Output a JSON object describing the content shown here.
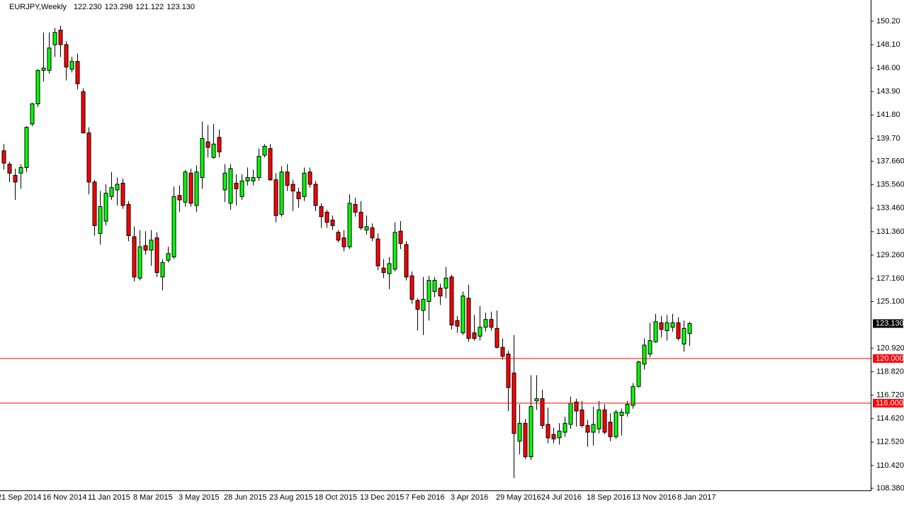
{
  "chart_data": {
    "type": "candlestick",
    "title": "EURJPY,Weekly",
    "header_values": [
      "122.230",
      "123.298",
      "121.122",
      "123.130"
    ],
    "categories": [
      "21 Sep 2014",
      null,
      null,
      null,
      null,
      null,
      null,
      null,
      "16 Nov 2014",
      null,
      null,
      null,
      null,
      null,
      null,
      null,
      "11 Jan 2015",
      null,
      null,
      null,
      null,
      null,
      null,
      null,
      "8 Mar 2015",
      null,
      null,
      null,
      null,
      null,
      null,
      null,
      "3 May 2015",
      null,
      null,
      null,
      null,
      null,
      null,
      null,
      "28 Jun 2015",
      null,
      null,
      null,
      null,
      null,
      null,
      null,
      "23 Aug 2015",
      null,
      null,
      null,
      null,
      null,
      null,
      null,
      "18 Oct 2015",
      null,
      null,
      null,
      null,
      null,
      null,
      null,
      "13 Dec 2015",
      null,
      null,
      null,
      null,
      null,
      null,
      null,
      "7 Feb 2016",
      null,
      null,
      null,
      null,
      null,
      null,
      null,
      "3 Apr 2016",
      null,
      null,
      null,
      null,
      null,
      null,
      null,
      "29 May 2016",
      null,
      null,
      null,
      null,
      null,
      null,
      null,
      "24 Jul 2016",
      null,
      null,
      null,
      null,
      null,
      null,
      null,
      "18 Sep 2016",
      null,
      null,
      null,
      null,
      null,
      null,
      null,
      "13 Nov 2016",
      null,
      null,
      null,
      null,
      null,
      null,
      null,
      "8 Jan 2017",
      null,
      null
    ],
    "open": [
      null,
      138.6,
      137.4,
      136.4,
      136.6,
      137.1,
      141.0,
      142.8,
      145.8,
      145.8,
      148.1,
      149.4,
      148.1,
      145.9,
      146.6,
      143.9,
      140.2,
      135.8,
      131.2,
      132.3,
      134.5,
      135.1,
      135.7,
      133.8,
      130.9,
      127.2,
      130.1,
      129.7,
      130.8,
      127.3,
      128.8,
      129.1,
      134.6,
      134.0,
      136.6,
      133.7,
      136.2,
      139.4,
      138.0,
      139.8,
      135.1,
      133.9,
      135.7,
      134.5,
      135.9,
      135.9,
      136.2,
      138.2,
      138.8,
      136.0,
      132.9,
      136.7,
      135.6,
      134.9,
      134.5,
      136.7,
      135.6,
      133.6,
      133.1,
      132.4,
      131.3,
      130.8,
      130.0,
      133.8,
      133.1,
      131.5,
      131.7,
      130.7,
      128.1,
      127.6,
      128.0,
      131.4,
      130.2,
      127.4,
      125.2,
      124.3,
      125.1,
      126.0,
      126.3,
      126.3,
      127.3,
      123.4,
      122.3,
      125.4,
      122.3,
      122.0,
      122.8,
      123.5,
      122.7,
      121.0,
      120.4,
      118.7,
      112.6,
      114.2,
      111.2,
      116.2,
      116.4,
      114.1,
      113.2,
      112.9,
      113.4,
      114.1,
      116.1,
      115.4,
      114.0,
      113.4,
      113.7,
      115.4,
      114.3,
      113.0,
      114.9,
      115.1,
      115.8,
      117.5,
      119.5,
      120.4,
      121.5,
      123.2,
      122.5,
      122.8,
      123.2,
      121.3,
      122.23
    ],
    "high": [
      null,
      139.2,
      137.6,
      137.0,
      137.4,
      140.8,
      142.9,
      145.9,
      149.2,
      149.2,
      149.6,
      149.8,
      148.4,
      147.0,
      147.3,
      144.2,
      140.7,
      136.0,
      135.0,
      135.6,
      136.7,
      136.2,
      136.1,
      134.1,
      131.8,
      131.5,
      131.4,
      131.5,
      131.3,
      128.9,
      130.0,
      135.4,
      135.5,
      136.9,
      137.0,
      137.3,
      141.2,
      140.9,
      141.0,
      140.5,
      137.4,
      137.4,
      136.5,
      136.5,
      137.1,
      136.9,
      138.8,
      139.2,
      139.2,
      136.6,
      137.2,
      137.4,
      136.0,
      135.3,
      137.1,
      137.1,
      135.9,
      133.9,
      133.3,
      132.8,
      131.5,
      131.5,
      134.7,
      134.4,
      134.1,
      132.8,
      132.1,
      131.2,
      128.9,
      129.1,
      132.2,
      132.3,
      130.5,
      127.8,
      125.4,
      127.3,
      127.4,
      127.3,
      126.7,
      128.2,
      127.5,
      123.8,
      126.0,
      126.6,
      123.9,
      124.7,
      124.1,
      124.2,
      124.3,
      121.8,
      120.7,
      122.1,
      115.9,
      114.6,
      118.5,
      118.5,
      117.2,
      115.6,
      113.8,
      114.2,
      114.8,
      116.6,
      116.4,
      116.2,
      114.5,
      115.7,
      116.2,
      115.9,
      115.1,
      115.4,
      115.5,
      116.2,
      117.8,
      119.8,
      121.8,
      123.2,
      124.0,
      123.8,
      123.9,
      124.0,
      123.7,
      123.4,
      123.298
    ],
    "low": [
      null,
      136.9,
      135.8,
      134.2,
      135.2,
      136.7,
      140.8,
      142.5,
      144.8,
      145.5,
      147.0,
      147.0,
      144.9,
      145.6,
      144.1,
      140.2,
      134.7,
      131.0,
      130.2,
      131.9,
      134.2,
      133.7,
      133.4,
      130.5,
      126.9,
      127.0,
      129.3,
      128.3,
      127.3,
      126.1,
      128.6,
      128.9,
      133.1,
      133.6,
      133.6,
      133.1,
      135.2,
      138.0,
      137.9,
      138.0,
      134.0,
      133.3,
      133.7,
      134.2,
      135.5,
      135.5,
      135.9,
      138.0,
      135.9,
      132.2,
      132.7,
      135.0,
      133.2,
      133.5,
      134.1,
      135.3,
      133.2,
      131.7,
      131.7,
      131.5,
      130.4,
      129.6,
      129.8,
      132.7,
      131.5,
      131.1,
      130.5,
      127.9,
      127.2,
      126.2,
      127.8,
      129.8,
      127.0,
      124.9,
      122.5,
      122.1,
      123.4,
      125.5,
      124.8,
      125.4,
      122.6,
      122.3,
      122.1,
      121.5,
      121.6,
      121.6,
      122.4,
      122.5,
      120.9,
      119.9,
      115.3,
      109.3,
      111.4,
      111.0,
      110.9,
      115.4,
      113.7,
      112.4,
      112.4,
      112.3,
      113.0,
      113.7,
      113.9,
      113.8,
      112.1,
      112.2,
      113.3,
      113.2,
      112.6,
      112.8,
      113.1,
      114.8,
      115.5,
      117.4,
      119.0,
      120.1,
      121.4,
      121.9,
      121.6,
      122.4,
      121.6,
      120.6,
      121.122
    ],
    "close": [
      null,
      137.5,
      136.6,
      135.8,
      137.1,
      140.7,
      142.8,
      145.8,
      146.0,
      147.8,
      149.2,
      148.1,
      146.1,
      146.6,
      144.6,
      140.2,
      135.8,
      131.9,
      133.6,
      134.8,
      135.3,
      135.6,
      133.7,
      131.0,
      127.3,
      130.0,
      129.7,
      130.6,
      127.7,
      128.6,
      129.4,
      134.5,
      134.2,
      136.7,
      133.9,
      136.7,
      139.7,
      138.9,
      139.2,
      138.5,
      136.6,
      137.0,
      135.2,
      135.9,
      136.2,
      136.2,
      138.1,
      139.0,
      136.0,
      132.8,
      136.7,
      135.5,
      135.0,
      134.3,
      136.6,
      135.6,
      133.7,
      132.7,
      132.2,
      131.9,
      130.6,
      130.0,
      133.9,
      133.1,
      131.7,
      131.8,
      130.8,
      128.3,
      127.7,
      128.5,
      131.3,
      130.3,
      127.3,
      125.3,
      124.4,
      125.3,
      127.0,
      127.0,
      125.6,
      127.2,
      123.0,
      122.9,
      125.6,
      121.8,
      121.8,
      122.8,
      123.5,
      122.8,
      121.0,
      120.2,
      117.4,
      113.3,
      114.2,
      111.2,
      115.7,
      116.4,
      114.0,
      112.9,
      112.8,
      113.5,
      114.2,
      116.0,
      115.3,
      114.0,
      113.4,
      114.1,
      115.4,
      113.4,
      113.0,
      115.2,
      115.2,
      115.9,
      117.5,
      119.7,
      121.2,
      121.6,
      123.3,
      122.6,
      123.2,
      123.2,
      121.8,
      122.7,
      123.13
    ],
    "up_color": "#00ff00",
    "down_color": "#ff0000",
    "wick_color": "#000000",
    "ylim": [
      108.19,
      152.1
    ],
    "yticks": [
      {
        "value": 150.2,
        "label": "150.20"
      },
      {
        "value": 148.1,
        "label": "148.10"
      },
      {
        "value": 146.0,
        "label": "146.00"
      },
      {
        "value": 143.9,
        "label": "143.90"
      },
      {
        "value": 141.8,
        "label": "141.80"
      },
      {
        "value": 139.7,
        "label": "139.70"
      },
      {
        "value": 137.66,
        "label": "137.660"
      },
      {
        "value": 135.56,
        "label": "135.560"
      },
      {
        "value": 133.46,
        "label": "133.460"
      },
      {
        "value": 131.36,
        "label": "131.360"
      },
      {
        "value": 129.26,
        "label": "129.260"
      },
      {
        "value": 127.16,
        "label": "127.160"
      },
      {
        "value": 125.1,
        "label": "125.100"
      },
      {
        "value": 120.92,
        "label": "120.920"
      },
      {
        "value": 118.82,
        "label": "118.820"
      },
      {
        "value": 116.72,
        "label": "116.720"
      },
      {
        "value": 114.62,
        "label": "114.620"
      },
      {
        "value": 112.52,
        "label": "112.520"
      },
      {
        "value": 110.42,
        "label": "110.420"
      },
      {
        "value": 108.38,
        "label": "108.380"
      }
    ],
    "hlines": [
      {
        "value": 120,
        "label": "120.000"
      },
      {
        "value": 116,
        "label": "116.000"
      }
    ],
    "hline_color": "#ff0000",
    "last_price": {
      "value": 123.13,
      "label": "123.130"
    },
    "grid": false
  }
}
